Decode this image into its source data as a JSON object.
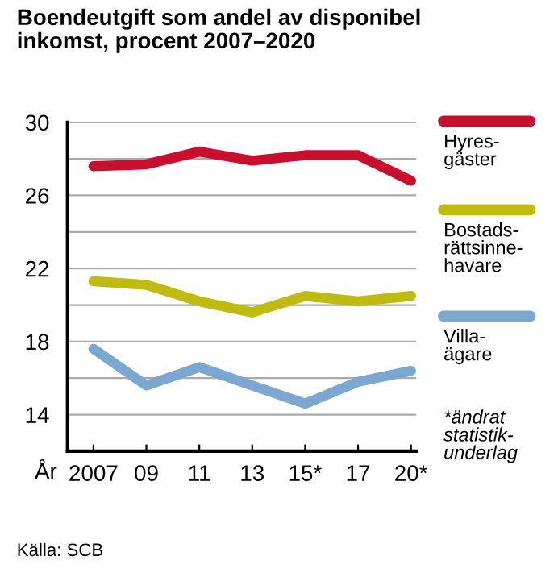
{
  "chart_data": {
    "type": "line",
    "title": "Boendeutgift som andel av disponibel\ninkomst, procent 2007–2020",
    "xlabel": "År",
    "categories": [
      "2007",
      "09",
      "11",
      "13",
      "15*",
      "17",
      "20*"
    ],
    "series": [
      {
        "name": "Hyres-\ngäster",
        "color": "#c8102e",
        "values": [
          27.6,
          27.7,
          28.4,
          27.9,
          28.2,
          28.2,
          26.8
        ]
      },
      {
        "name": "Bostads-\nrättsinne-\nhavare",
        "color": "#bfbb11",
        "values": [
          21.3,
          21.1,
          20.2,
          19.6,
          20.5,
          20.2,
          20.5
        ]
      },
      {
        "name": "Villa-\nägare",
        "color": "#7ba7d0",
        "values": [
          17.6,
          15.6,
          16.6,
          15.6,
          14.6,
          15.8,
          16.4
        ]
      }
    ],
    "ylim": [
      12,
      30
    ],
    "yticks": [
      {
        "value": 14,
        "label": "14"
      },
      {
        "value": 16,
        "label": null
      },
      18,
      {
        "value": 20,
        "label": null
      },
      22,
      {
        "value": 24,
        "label": null
      },
      26,
      {
        "value": 28,
        "label": null
      },
      30
    ],
    "grid": "y",
    "legend": "right",
    "marker": "none",
    "line_style": "solid",
    "annotations": [
      "*ändrat\nstatistik-\nunderlag",
      "Källa: SCB"
    ]
  }
}
